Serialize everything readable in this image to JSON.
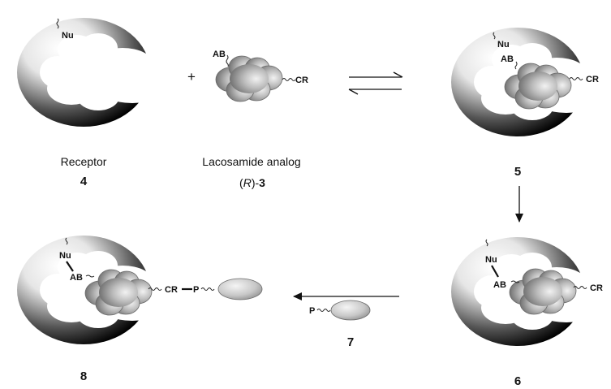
{
  "compounds": {
    "receptor": {
      "name": "Receptor",
      "number": "4"
    },
    "ligand": {
      "name": "Lacosamide analog",
      "stereo_prefix": "(",
      "stereo_letter": "R",
      "stereo_suffix": ")-",
      "number": "3"
    },
    "complex": {
      "number": "5"
    },
    "covalent": {
      "number": "6"
    },
    "probe": {
      "number": "7"
    },
    "conjugate": {
      "number": "8"
    }
  },
  "groups": {
    "nucleophile": "Nu",
    "affinity_bait": "AB",
    "chemical_reporter": "CR",
    "probe": "P"
  },
  "operators": {
    "plus": "+"
  },
  "colors": {
    "text": "#111111",
    "line": "#111111",
    "receptor_dark": "#000000",
    "receptor_light": "#ffffff",
    "ligand": "#9a9a9a",
    "probe": "#c8c8c8"
  }
}
